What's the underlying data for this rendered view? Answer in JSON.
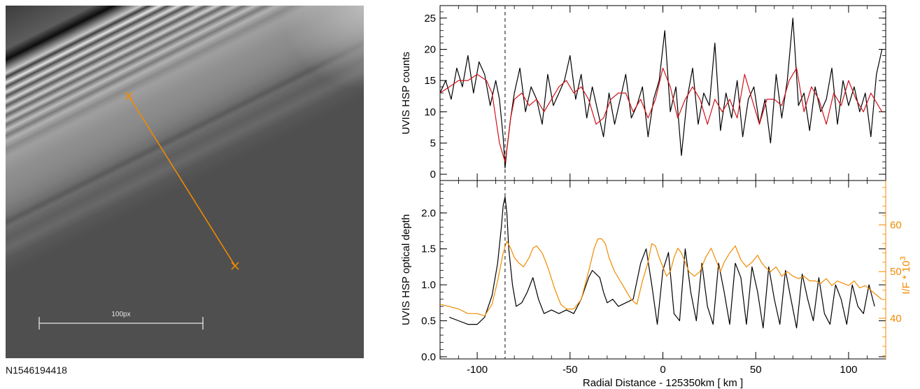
{
  "image": {
    "id_label": "N1546194418",
    "scale_bar_label": "100px"
  },
  "colors": {
    "black": "#000000",
    "red": "#d1121b",
    "orange": "#f08a00",
    "scale_bar": "#e6e6e6"
  },
  "chart_data": [
    {
      "type": "line",
      "ylabel": "UVIS HSP counts",
      "xlim": [
        -120,
        120
      ],
      "ylim": [
        -1,
        27
      ],
      "yticks": [
        0,
        5,
        10,
        15,
        20,
        25
      ],
      "grid": false,
      "reference_line_x": -85,
      "series": [
        {
          "color": "#000000",
          "x": [
            -120,
            -117,
            -114,
            -111,
            -108,
            -105,
            -102,
            -99,
            -96,
            -93,
            -90,
            -88,
            -86,
            -85,
            -84,
            -82,
            -80,
            -77,
            -74,
            -71,
            -68,
            -65,
            -62,
            -59,
            -56,
            -53,
            -50,
            -47,
            -44,
            -41,
            -38,
            -35,
            -32,
            -29,
            -26,
            -23,
            -20,
            -17,
            -14,
            -11,
            -8,
            -5,
            -2,
            1,
            4,
            7,
            10,
            13,
            16,
            19,
            22,
            25,
            28,
            31,
            34,
            37,
            40,
            43,
            46,
            49,
            52,
            55,
            58,
            61,
            64,
            67,
            70,
            73,
            76,
            79,
            82,
            85,
            88,
            91,
            94,
            97,
            100,
            103,
            106,
            109,
            112,
            115,
            118
          ],
          "y": [
            13,
            15,
            12,
            17,
            14,
            19,
            13,
            18,
            16,
            11,
            15,
            12,
            6,
            1,
            4,
            9,
            13,
            17,
            10,
            14,
            12,
            8,
            16,
            11,
            13,
            15,
            19,
            12,
            16,
            9,
            14,
            10,
            6,
            13,
            8,
            12,
            16,
            9,
            11,
            14,
            6,
            12,
            15,
            23,
            10,
            14,
            3,
            12,
            17,
            8,
            13,
            11,
            21,
            7,
            13,
            9,
            15,
            6,
            12,
            14,
            8,
            12,
            5,
            16,
            9,
            15,
            25,
            11,
            13,
            7,
            14,
            10,
            12,
            17,
            8,
            15,
            11,
            14,
            10,
            13,
            6,
            16,
            20
          ]
        },
        {
          "color": "#d1121b",
          "x": [
            -120,
            -115,
            -110,
            -105,
            -100,
            -95,
            -92,
            -90,
            -88,
            -86,
            -85,
            -84,
            -82,
            -80,
            -76,
            -72,
            -68,
            -64,
            -60,
            -56,
            -52,
            -48,
            -44,
            -40,
            -36,
            -32,
            -28,
            -24,
            -20,
            -16,
            -12,
            -8,
            -4,
            0,
            4,
            8,
            12,
            16,
            20,
            24,
            28,
            32,
            36,
            40,
            44,
            48,
            52,
            56,
            60,
            64,
            68,
            72,
            76,
            80,
            84,
            88,
            92,
            96,
            100,
            104,
            108,
            112,
            116,
            118
          ],
          "y": [
            13,
            14,
            15,
            15,
            16,
            15,
            13,
            9,
            5,
            3,
            2,
            4,
            9,
            12,
            13,
            11,
            12,
            10,
            12,
            14,
            15,
            13,
            14,
            12,
            8,
            9,
            12,
            13,
            13,
            10,
            12,
            9,
            12,
            17,
            14,
            9,
            12,
            14,
            12,
            8,
            12,
            10,
            12,
            9,
            16,
            12,
            8,
            12,
            12,
            11,
            15,
            17,
            10,
            14,
            12,
            8,
            13,
            11,
            15,
            12,
            10,
            13,
            11,
            10
          ]
        }
      ]
    },
    {
      "type": "line",
      "xlabel": "Radial Distance - 125350km [ km ]",
      "ylabel": "UVIS HSP optical depth",
      "y2label": "I/F * 10",
      "y2label_superscript": "3",
      "xlim": [
        -120,
        120
      ],
      "xticks": [
        -100,
        -50,
        0,
        50,
        100
      ],
      "ylim": [
        -0.03,
        2.45
      ],
      "yticks": [
        0.0,
        0.5,
        1.0,
        1.5,
        2.0
      ],
      "y2lim": [
        31.3,
        69.5
      ],
      "y2ticks": [
        40,
        50,
        60
      ],
      "grid": false,
      "reference_line_x": -85,
      "series": [
        {
          "color": "#000000",
          "axis": "left",
          "x": [
            -115,
            -110,
            -105,
            -100,
            -96,
            -92,
            -89,
            -87,
            -86,
            -85,
            -84,
            -83,
            -81,
            -79,
            -76,
            -73,
            -70,
            -67,
            -64,
            -60,
            -56,
            -52,
            -48,
            -44,
            -40,
            -38,
            -36,
            -34,
            -32,
            -30,
            -27,
            -24,
            -20,
            -16,
            -12,
            -9,
            -6,
            -3,
            0,
            3,
            6,
            9,
            12,
            15,
            18,
            21,
            24,
            27,
            30,
            33,
            36,
            39,
            42,
            45,
            48,
            51,
            54,
            57,
            60,
            63,
            66,
            69,
            72,
            75,
            78,
            81,
            84,
            87,
            90,
            93,
            96,
            99,
            102,
            105,
            108,
            111,
            114
          ],
          "y": [
            0.55,
            0.5,
            0.45,
            0.45,
            0.55,
            0.85,
            1.3,
            1.8,
            2.1,
            2.22,
            2.0,
            1.5,
            1.0,
            0.7,
            0.75,
            0.9,
            1.1,
            0.8,
            0.6,
            0.65,
            0.6,
            0.65,
            0.6,
            0.8,
            1.1,
            1.2,
            1.15,
            1.1,
            0.9,
            0.75,
            0.8,
            0.7,
            0.75,
            0.8,
            1.3,
            1.5,
            1.0,
            0.45,
            1.2,
            1.45,
            0.6,
            0.5,
            1.5,
            0.9,
            0.5,
            1.3,
            0.7,
            0.45,
            1.3,
            0.9,
            0.45,
            1.3,
            1.1,
            0.45,
            1.25,
            0.9,
            0.4,
            1.25,
            0.8,
            0.45,
            1.2,
            0.8,
            0.4,
            1.15,
            0.8,
            0.5,
            1.1,
            0.6,
            0.45,
            1.0,
            0.8,
            0.45,
            1.0,
            0.7,
            0.6,
            1.0,
            0.7
          ]
        },
        {
          "color": "#f08a00",
          "axis": "right",
          "x": [
            -120,
            -115,
            -110,
            -105,
            -100,
            -96,
            -92,
            -89,
            -86,
            -84,
            -82,
            -80,
            -78,
            -75,
            -72,
            -70,
            -68,
            -65,
            -62,
            -58,
            -55,
            -52,
            -48,
            -44,
            -40,
            -37,
            -35,
            -33,
            -31,
            -29,
            -26,
            -23,
            -20,
            -17,
            -14,
            -11,
            -8,
            -6,
            -4,
            -2,
            0,
            2,
            4,
            6,
            8,
            10,
            12,
            14,
            17,
            20,
            23,
            26,
            29,
            31,
            33,
            36,
            39,
            42,
            45,
            48,
            51,
            53,
            55,
            58,
            61,
            64,
            67,
            70,
            73,
            76,
            79,
            82,
            85,
            88,
            91,
            94,
            97,
            100,
            103,
            106,
            109,
            112,
            115,
            118
          ],
          "y": [
            43,
            42.5,
            42,
            41,
            41,
            40.5,
            43,
            48,
            54,
            56.5,
            55,
            53,
            52,
            51,
            53,
            55,
            55.5,
            54,
            51,
            46,
            43,
            42,
            42,
            44,
            50,
            55,
            57,
            57,
            56,
            53,
            50,
            48,
            46,
            44,
            43,
            48,
            52,
            56,
            55.5,
            53,
            51,
            49,
            50,
            53,
            55,
            54,
            52,
            50,
            49,
            50,
            53,
            55,
            52,
            50,
            52,
            54,
            55.5,
            52.5,
            51,
            52,
            53.5,
            52,
            51,
            50,
            51,
            49,
            50,
            49,
            48.5,
            49,
            48,
            48,
            47.5,
            48.5,
            47,
            48,
            47.5,
            47,
            48,
            46.5,
            47,
            46,
            45,
            44
          ]
        }
      ]
    }
  ]
}
